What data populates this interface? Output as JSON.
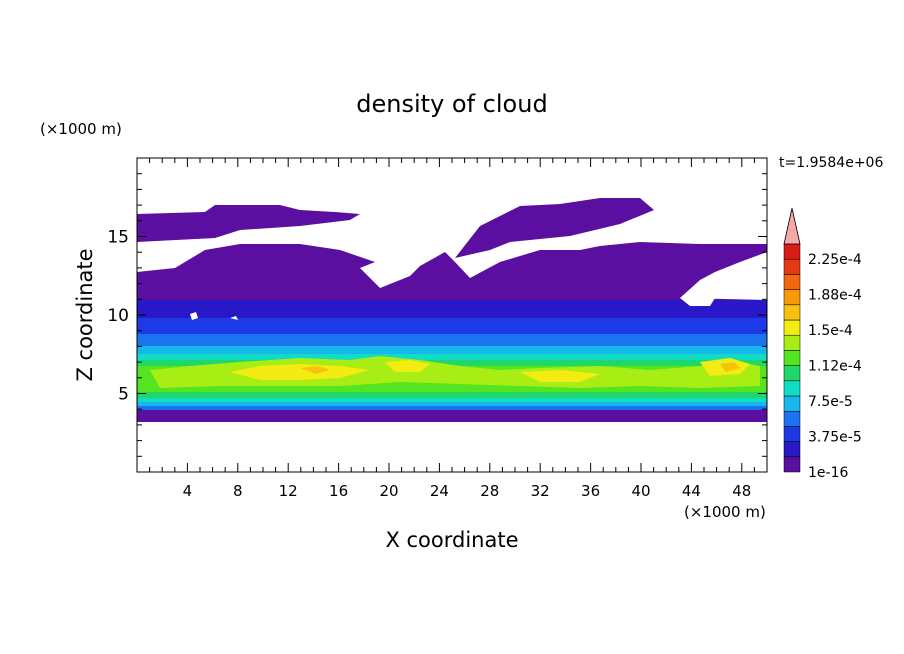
{
  "chart_data": {
    "type": "heatmap",
    "title": "density of cloud",
    "xlabel": "X coordinate",
    "ylabel": "Z coordinate",
    "x_unit": "(×1000 m)",
    "y_unit": "(×1000 m)",
    "time_label": "t=1.9584e+06",
    "xlim": [
      0,
      50
    ],
    "ylim": [
      0,
      20
    ],
    "x_ticks": [
      4,
      8,
      12,
      16,
      20,
      24,
      28,
      32,
      36,
      40,
      44,
      48
    ],
    "y_ticks": [
      5,
      10,
      15
    ],
    "colorbar": {
      "levels": [
        "1e-16",
        "3.75e-5",
        "7.5e-5",
        "1.12e-4",
        "1.5e-4",
        "1.88e-4",
        "2.25e-4"
      ],
      "colors": [
        "#5a0fa0",
        "#2818c8",
        "#1d3ae6",
        "#1b73f0",
        "#17b6ec",
        "#11dcc4",
        "#20d86a",
        "#54e420",
        "#a8ee14",
        "#f2ec12",
        "#f6c20e",
        "#f69a0a",
        "#f06812",
        "#e43a14",
        "#d81c18",
        "#f4a8a8"
      ],
      "extend": "max"
    },
    "z_profile": {
      "z": [
        3.5,
        4,
        5,
        6,
        6.5,
        7,
        7.5,
        8,
        9,
        10,
        11,
        12.5,
        14,
        16
      ],
      "value": [
        1e-16,
        4e-05,
        0.00011,
        0.00017,
        0.00019,
        0.00015,
        0.00011,
        8e-05,
        5e-05,
        3.5e-05,
        2e-05,
        8e-06,
        3e-06,
        1e-06
      ]
    }
  }
}
